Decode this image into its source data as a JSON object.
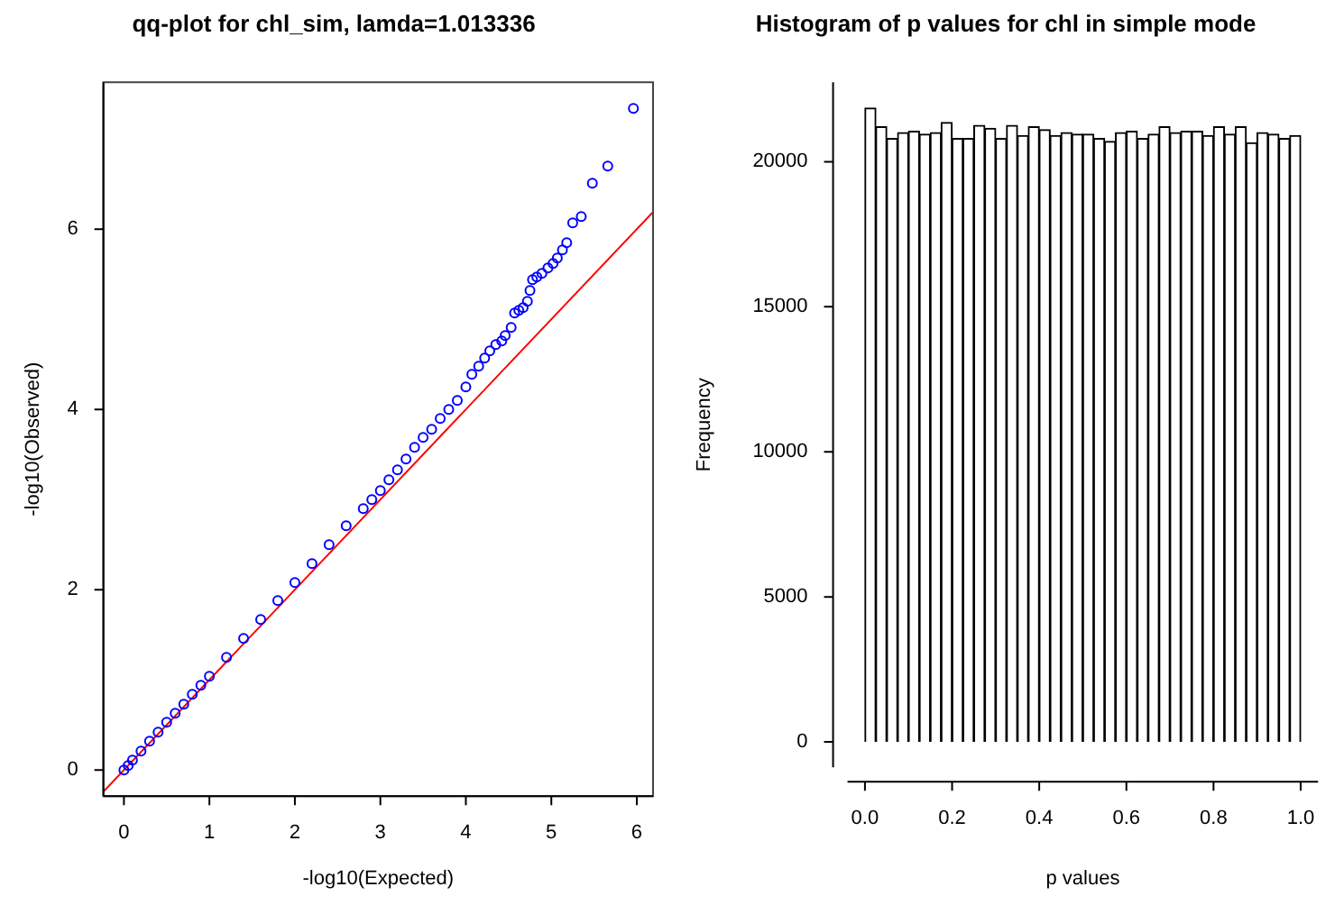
{
  "chart_data": [
    {
      "type": "scatter",
      "title": "qq-plot for chl_sim, lamda=1.013336",
      "xlabel": "-log10(Expected)",
      "ylabel": "-log10(Observed)",
      "xlim": [
        -0.24,
        6.19
      ],
      "ylim": [
        -0.29,
        7.63
      ],
      "xticks": [
        0,
        1,
        2,
        3,
        4,
        5,
        6
      ],
      "yticks": [
        0,
        2,
        4,
        6
      ],
      "series": [
        {
          "type": "scatter",
          "color": "#0000ff",
          "marker": "circle",
          "x": [
            0,
            0.05,
            0.1,
            0.2,
            0.3,
            0.4,
            0.5,
            0.6,
            0.7,
            0.8,
            0.9,
            1.0,
            1.2,
            1.4,
            1.6,
            1.8,
            2.0,
            2.2,
            2.4,
            2.6,
            2.8,
            2.9,
            3.0,
            3.1,
            3.2,
            3.3,
            3.4,
            3.5,
            3.6,
            3.7,
            3.8,
            3.9,
            4.0,
            4.07,
            4.15,
            4.22,
            4.28,
            4.35,
            4.42,
            4.46,
            4.53,
            4.57,
            4.62,
            4.67,
            4.72,
            4.75,
            4.78,
            4.83,
            4.89,
            4.96,
            5.02,
            5.07,
            5.13,
            5.18,
            5.25,
            5.35,
            5.48,
            5.66,
            5.96
          ],
          "values": [
            0,
            0.05,
            0.11,
            0.21,
            0.32,
            0.42,
            0.53,
            0.63,
            0.73,
            0.84,
            0.94,
            1.04,
            1.25,
            1.46,
            1.67,
            1.88,
            2.08,
            2.29,
            2.5,
            2.71,
            2.9,
            3.0,
            3.1,
            3.22,
            3.33,
            3.45,
            3.58,
            3.69,
            3.78,
            3.9,
            4.0,
            4.1,
            4.25,
            4.39,
            4.48,
            4.57,
            4.65,
            4.72,
            4.76,
            4.82,
            4.91,
            5.07,
            5.1,
            5.13,
            5.2,
            5.32,
            5.44,
            5.47,
            5.51,
            5.57,
            5.62,
            5.68,
            5.77,
            5.85,
            6.07,
            6.14,
            6.51,
            6.7,
            7.34
          ]
        },
        {
          "type": "line",
          "color": "#ff0000",
          "marker": "none",
          "x": [
            -0.24,
            6.19
          ],
          "values": [
            -0.24,
            6.19
          ]
        }
      ]
    },
    {
      "type": "histogram",
      "title": "Histogram of p values for chl in simple mode",
      "xlabel": "p values",
      "ylabel": "Frequency",
      "color": "#ffffff",
      "xlim": [
        -0.04,
        1.04
      ],
      "ylim": [
        -875,
        22740
      ],
      "xticks": [
        {
          "value": 0,
          "label": "0.0"
        },
        {
          "value": 0.2,
          "label": "0.2"
        },
        {
          "value": 0.4,
          "label": "0.4"
        },
        {
          "value": 0.6,
          "label": "0.6"
        },
        {
          "value": 0.8,
          "label": "0.8"
        },
        {
          "value": 1,
          "label": "1.0"
        }
      ],
      "yticks": [
        0,
        5000,
        10000,
        15000,
        20000
      ],
      "bins": [
        0,
        0.025,
        0.05,
        0.075,
        0.1,
        0.125,
        0.15,
        0.175,
        0.2,
        0.225,
        0.25,
        0.275,
        0.3,
        0.325,
        0.35,
        0.375,
        0.4,
        0.425,
        0.45,
        0.475,
        0.5,
        0.525,
        0.55,
        0.575,
        0.6,
        0.625,
        0.65,
        0.675,
        0.7,
        0.725,
        0.75,
        0.775,
        0.8,
        0.825,
        0.85,
        0.875,
        0.9,
        0.925,
        0.95,
        0.975,
        1
      ],
      "values": [
        21850,
        21200,
        20800,
        21000,
        21050,
        20950,
        21000,
        21350,
        20800,
        20800,
        21250,
        21150,
        20800,
        21250,
        20900,
        21200,
        21100,
        20900,
        21000,
        20950,
        20950,
        20800,
        20700,
        21000,
        21050,
        20800,
        20950,
        21200,
        21000,
        21050,
        21050,
        20900,
        21200,
        20950,
        21200,
        20650,
        21000,
        20950,
        20800,
        20900
      ]
    }
  ]
}
